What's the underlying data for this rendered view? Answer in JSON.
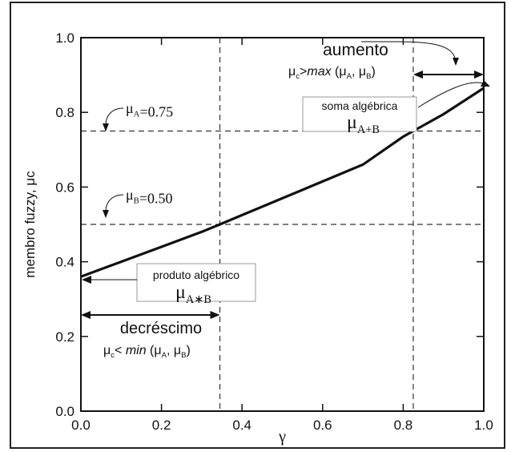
{
  "chart_data": {
    "type": "line",
    "xlabel": "γ",
    "ylabel": "membro fuzzy, μc",
    "xlim": [
      0,
      1
    ],
    "ylim": [
      0,
      1
    ],
    "xticks": [
      "0.0",
      "0.2",
      "0.4",
      "0.6",
      "0.8",
      "1.0"
    ],
    "yticks": [
      "0.0",
      "0.2",
      "0.4",
      "0.6",
      "0.8",
      "1.0"
    ],
    "grid": false,
    "series": [
      {
        "x": [
          0.0,
          0.1,
          0.2,
          0.3,
          0.345,
          0.4,
          0.5,
          0.6,
          0.7,
          0.8,
          0.825,
          0.9,
          1.0
        ],
        "y": [
          0.36,
          0.4,
          0.44,
          0.48,
          0.5,
          0.525,
          0.57,
          0.615,
          0.66,
          0.735,
          0.75,
          0.795,
          0.865
        ]
      }
    ],
    "reference_lines": [
      {
        "orientation": "horizontal",
        "value": 0.75,
        "style": "dashed"
      },
      {
        "orientation": "horizontal",
        "value": 0.5,
        "style": "dashed"
      },
      {
        "orientation": "vertical",
        "value": 0.345,
        "style": "dashed"
      },
      {
        "orientation": "vertical",
        "value": 0.825,
        "style": "dashed"
      }
    ],
    "annotations": {
      "mu_a": {
        "text": "μA=0.75"
      },
      "mu_b": {
        "text": "μB=0.50"
      },
      "soma": {
        "title": "soma algébrica",
        "symbol": "μA+B"
      },
      "produto": {
        "title": "produto algébrico",
        "symbol": "μA∗B"
      },
      "aumento": {
        "title": "aumento",
        "formula": "μc>max (μA, μB)"
      },
      "decrescimo": {
        "title": "decréscimo",
        "formula": "μc< min (μA, μB)"
      }
    }
  }
}
